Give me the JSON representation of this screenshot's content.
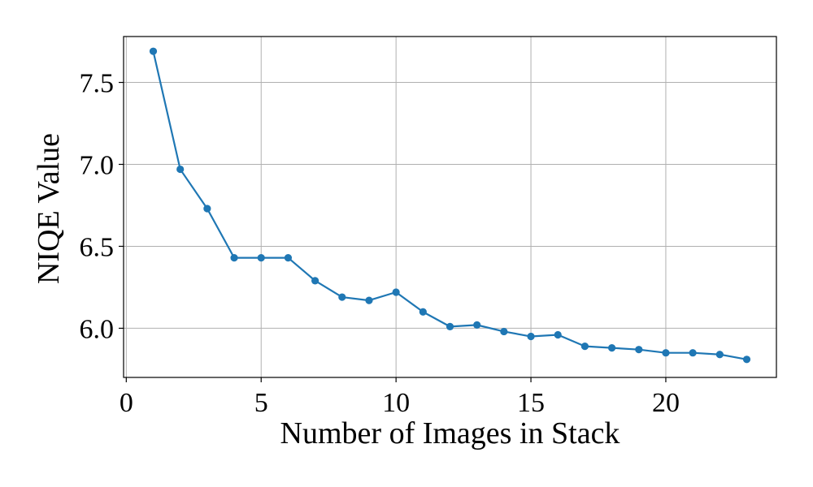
{
  "chart_data": {
    "type": "line",
    "title": "",
    "xlabel": "Number of Images in Stack",
    "ylabel": "NIQE Value",
    "xlim": [
      -0.1,
      24.1
    ],
    "ylim": [
      5.7,
      7.78
    ],
    "xticks": [
      0,
      5,
      10,
      15,
      20
    ],
    "xtick_labels": [
      "0",
      "5",
      "10",
      "15",
      "20"
    ],
    "yticks": [
      6.0,
      6.5,
      7.0,
      7.5
    ],
    "ytick_labels": [
      "6.0",
      "6.5",
      "7.0",
      "7.5"
    ],
    "grid": true,
    "legend": null,
    "series": [
      {
        "color": "#1f77b4",
        "marker": "circle",
        "x": [
          1,
          2,
          3,
          4,
          5,
          6,
          7,
          8,
          9,
          10,
          11,
          12,
          13,
          14,
          15,
          16,
          17,
          18,
          19,
          20,
          21,
          22,
          23
        ],
        "y": [
          7.69,
          6.97,
          6.73,
          6.43,
          6.43,
          6.43,
          6.29,
          6.19,
          6.17,
          6.22,
          6.1,
          6.01,
          6.02,
          5.98,
          5.95,
          5.96,
          5.89,
          5.88,
          5.87,
          5.85,
          5.85,
          5.84,
          5.81
        ]
      }
    ]
  }
}
